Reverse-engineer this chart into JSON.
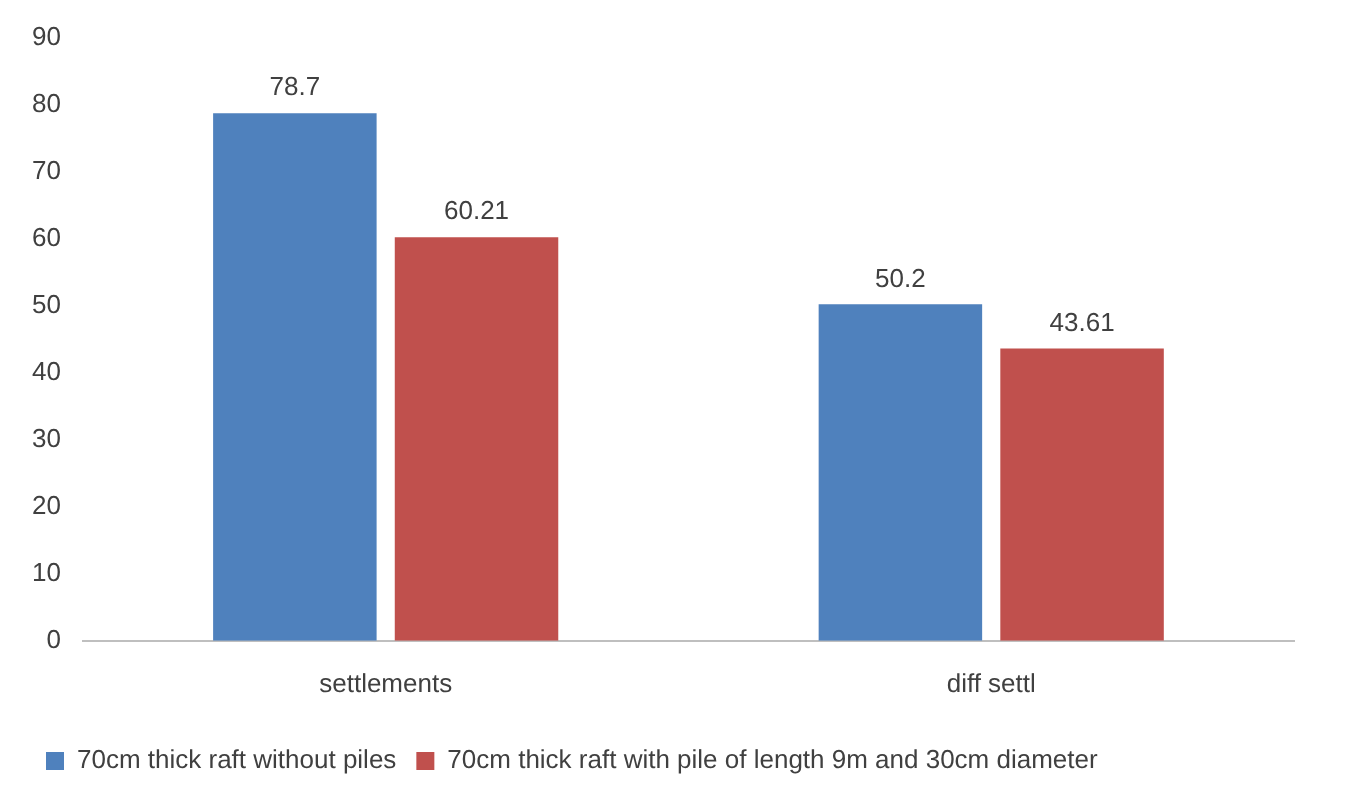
{
  "chart_data": {
    "type": "bar",
    "categories": [
      "settlements",
      "diff settl"
    ],
    "series": [
      {
        "name": "70cm thick raft without piles",
        "color": "#4f81bd",
        "values": [
          78.7,
          50.2
        ]
      },
      {
        "name": "70cm thick raft with pile of length 9m and 30cm diameter",
        "color": "#c0504d",
        "values": [
          60.21,
          43.61
        ]
      }
    ],
    "ylim": [
      0,
      90
    ],
    "yticks": [
      0,
      10,
      20,
      30,
      40,
      50,
      60,
      70,
      80,
      90
    ],
    "grid": false,
    "legend": "bottom left",
    "data_labels": true
  }
}
